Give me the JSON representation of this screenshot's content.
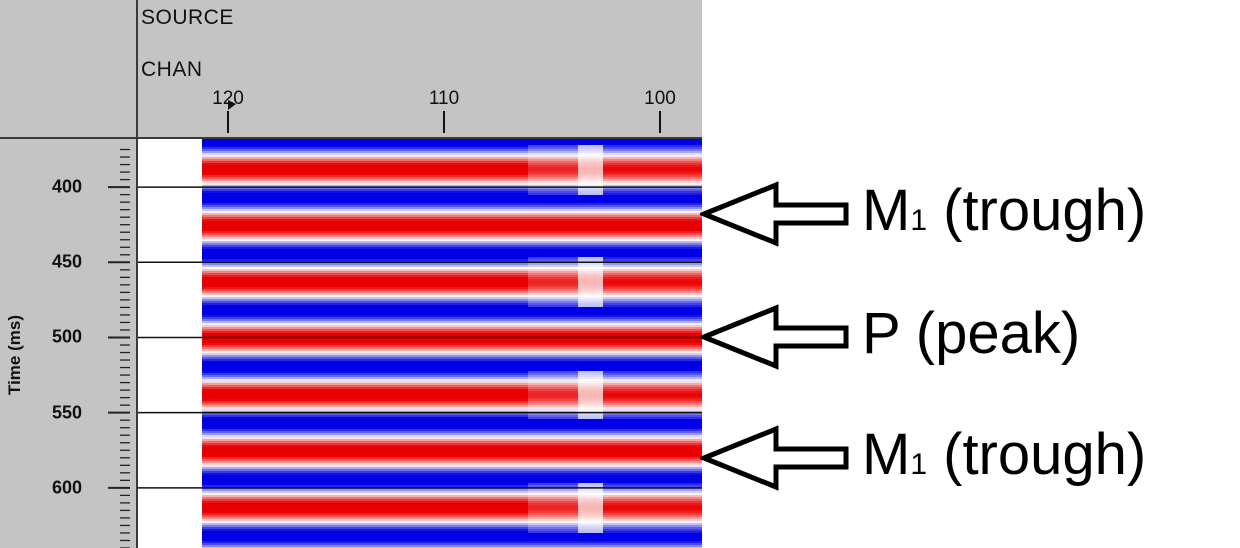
{
  "header": {
    "source_label": "SOURCE",
    "chan_label": "CHAN"
  },
  "y_axis_title": "Time (ms)",
  "chart_data": {
    "type": "heatmap",
    "title": "",
    "xlabel": "CHAN",
    "ylabel": "Time (ms)",
    "x_ticks": [
      120,
      110,
      100
    ],
    "y_ticks": [
      400,
      450,
      500,
      550,
      600
    ],
    "xlim": [
      122,
      98
    ],
    "ylim": [
      368,
      640
    ],
    "colors": {
      "positive": "#e8141e",
      "negative": "#1414e6",
      "zero": "#ffffff"
    },
    "annotations": [
      {
        "main": "M",
        "sub": "1",
        "rest": " (trough)",
        "time": 418
      },
      {
        "main": "P",
        "sub": "",
        "rest": " (peak)",
        "time": 500
      },
      {
        "main": "M",
        "sub": "1",
        "rest": " (trough)",
        "time": 580
      }
    ]
  }
}
